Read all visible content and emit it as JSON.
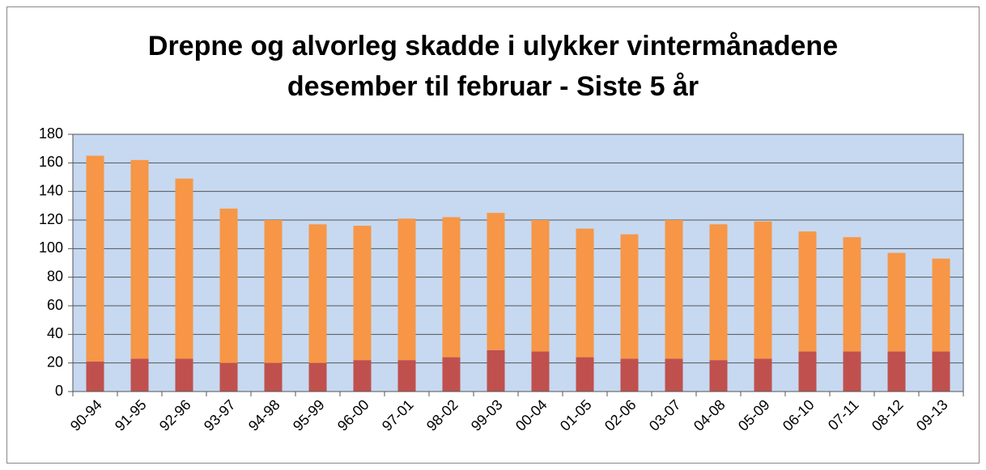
{
  "chart_data": {
    "type": "stacked_bar",
    "title": "Drepne og alvorleg skadde i ulykker vintermånadene desember til februar - Siste 5 år",
    "categories": [
      "90-94",
      "91-95",
      "92-96",
      "93-97",
      "94-98",
      "95-99",
      "96-00",
      "97-01",
      "98-02",
      "99-03",
      "00-04",
      "01-05",
      "02-06",
      "03-07",
      "04-08",
      "05-09",
      "06-10",
      "07-11",
      "08-12",
      "09-13"
    ],
    "series": [
      {
        "color": "#c0504d",
        "values": [
          21,
          23,
          23,
          20,
          20,
          20,
          22,
          22,
          24,
          29,
          28,
          24,
          23,
          23,
          22,
          23,
          28,
          28,
          28,
          28
        ]
      },
      {
        "color": "#f79646",
        "values": [
          144,
          139,
          126,
          108,
          100,
          97,
          94,
          99,
          98,
          96,
          92,
          90,
          87,
          97,
          95,
          96,
          84,
          80,
          69,
          65
        ]
      }
    ],
    "ylim": [
      0,
      180
    ],
    "yticks": [
      0,
      20,
      40,
      60,
      80,
      100,
      120,
      140,
      160,
      180
    ],
    "grid": true
  }
}
